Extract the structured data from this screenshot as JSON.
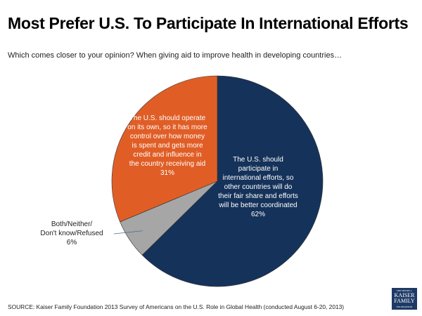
{
  "title": "Most Prefer U.S. To Participate In International Efforts",
  "subtitle": "Which comes closer to your opinion? When giving aid to improve health in developing countries…",
  "source": "SOURCE: Kaiser Family Foundation 2013 Survey of Americans on the U.S. Role in Global Health (conducted August 6-20, 2013)",
  "logo": {
    "line1": "THE HENRY J.",
    "line2": "KAISER",
    "line3": "FAMILY",
    "line4": "FOUNDATION"
  },
  "chart_data": {
    "type": "pie",
    "title": "Most Prefer U.S. To Participate In International Efforts",
    "start": "top, clockwise",
    "slices": [
      {
        "name": "participate",
        "label_lines": [
          "The U.S. should",
          "participate in",
          "international efforts, so",
          "other countries will do",
          "their fair share and efforts",
          "will be better coordinated"
        ],
        "value": 62,
        "value_label": "62%",
        "color": "#15325a"
      },
      {
        "name": "both-neither",
        "label_lines": [
          "Both/Neither/",
          "Don't know/Refused"
        ],
        "value": 6,
        "value_label": "6%",
        "color": "#a6a6a6"
      },
      {
        "name": "operate-alone",
        "label_lines": [
          "The U.S. should operate",
          "on its own, so it has more",
          "control over how money",
          "is spent and gets more",
          "credit and influence in",
          "the country receiving aid"
        ],
        "value": 31,
        "value_label": "31%",
        "color": "#e05e26"
      }
    ]
  }
}
